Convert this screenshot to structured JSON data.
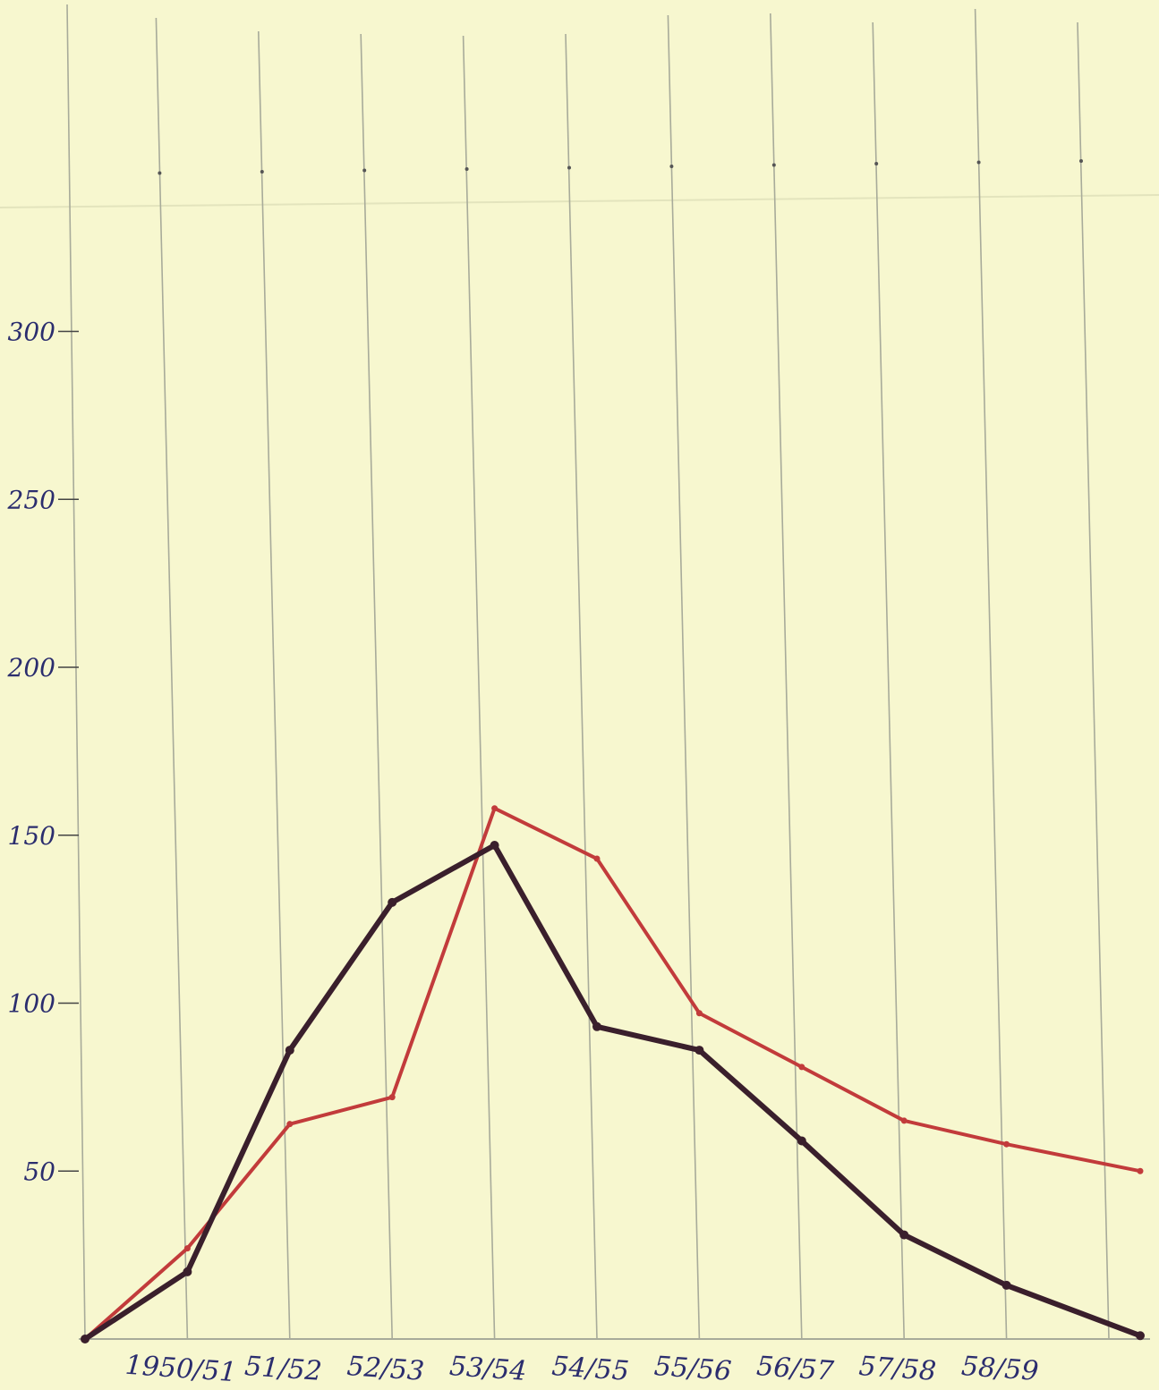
{
  "chart_data": {
    "type": "line",
    "categories": [
      "",
      "1950/51",
      "51/52",
      "52/53",
      "53/54",
      "54/55",
      "55/56",
      "56/57",
      "57/58",
      "58/59",
      ""
    ],
    "series": [
      {
        "color": "#c23b3b",
        "values": [
          0,
          27,
          64,
          72,
          158,
          143,
          97,
          81,
          65,
          58,
          50
        ]
      },
      {
        "color": "#3a1f2c",
        "values": [
          0,
          20,
          86,
          130,
          147,
          93,
          86,
          59,
          31,
          16,
          1
        ]
      }
    ],
    "y_ticks": [
      {
        "value": 50,
        "label": "50"
      },
      {
        "value": 100,
        "label": "100"
      },
      {
        "value": 150,
        "label": "150"
      },
      {
        "value": 200,
        "label": "200"
      },
      {
        "value": 250,
        "label": "250"
      },
      {
        "value": 300,
        "label": "300"
      }
    ],
    "ylim": [
      0,
      300
    ],
    "grid": "vertical",
    "title": "",
    "xlabel": "",
    "ylabel": ""
  },
  "colors": {
    "paper": "#f7f7cf",
    "grid": "#a8ab9a",
    "ink": "#2b2d6e"
  }
}
